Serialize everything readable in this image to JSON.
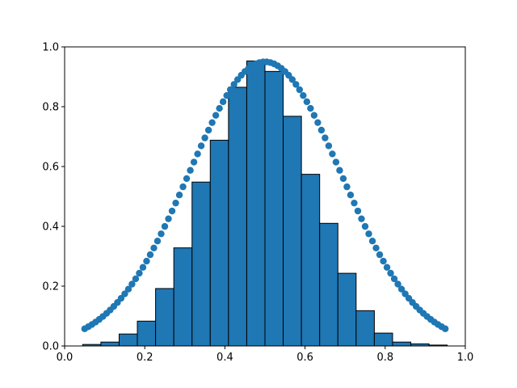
{
  "chart_data": {
    "type": "bar",
    "xlim": [
      0.0,
      1.0
    ],
    "ylim": [
      0.0,
      1.0
    ],
    "grid": false,
    "x_ticks": [
      "0.0",
      "0.2",
      "0.4",
      "0.6",
      "0.8",
      "1.0"
    ],
    "y_ticks": [
      "0.0",
      "0.2",
      "0.4",
      "0.6",
      "0.8",
      "1.0"
    ],
    "histogram": {
      "bin_start": 0.045,
      "bin_width": 0.0455,
      "values": [
        0.005,
        0.013,
        0.04,
        0.083,
        0.192,
        0.328,
        0.548,
        0.688,
        0.865,
        0.953,
        0.918,
        0.768,
        0.574,
        0.41,
        0.243,
        0.118,
        0.043,
        0.013,
        0.007,
        0.003
      ],
      "fill_color": "#1f77b4",
      "edge_color": "#000000"
    },
    "scatter": {
      "x_start": 0.05,
      "x_end": 0.95,
      "count": 100,
      "curve": "gaussian",
      "mean": 0.5,
      "sigma": 0.19,
      "peak": 0.95,
      "color": "#1f77b4"
    }
  }
}
